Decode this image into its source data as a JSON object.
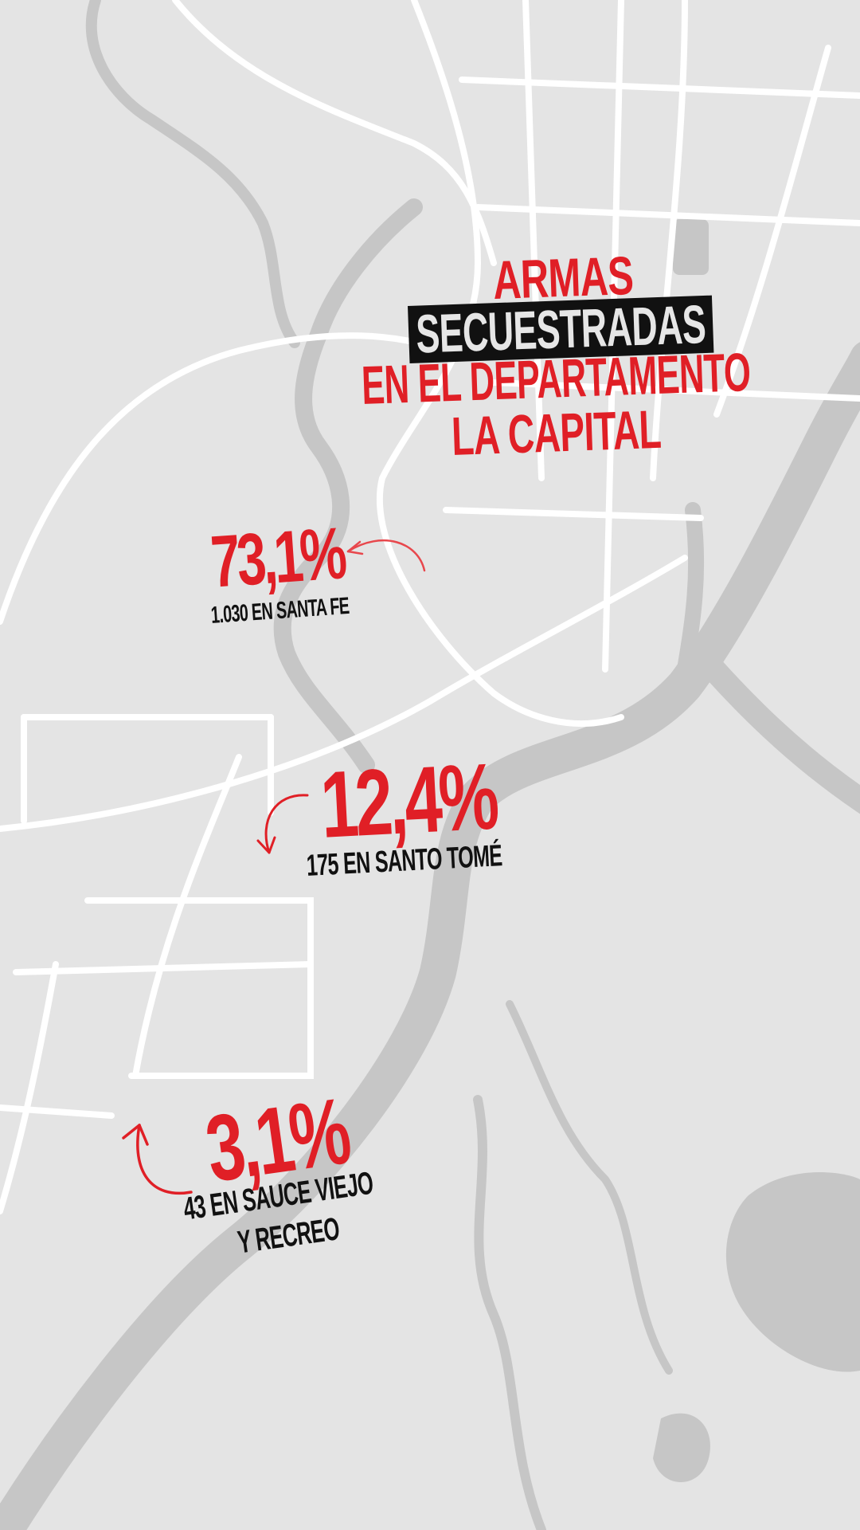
{
  "title": {
    "line1": "ARMAS",
    "line2": "SECUESTRADAS",
    "line3": "EN EL DEPARTAMENTO",
    "line4": "LA CAPITAL"
  },
  "stats": [
    {
      "percent": "73,1%",
      "detail": "1.030 EN SANTA FE"
    },
    {
      "percent": "12,4%",
      "detail": "175 EN SANTO TOMÉ"
    },
    {
      "percent": "3,1%",
      "detail_line1": "43 EN SAUCE VIEJO",
      "detail_line2": "Y RECREO"
    }
  ],
  "colors": {
    "accent": "#e01f26",
    "map_land": "#e4e4e4",
    "map_water": "#c6c6c6",
    "map_roads": "#ffffff",
    "text_dark": "#111111"
  }
}
